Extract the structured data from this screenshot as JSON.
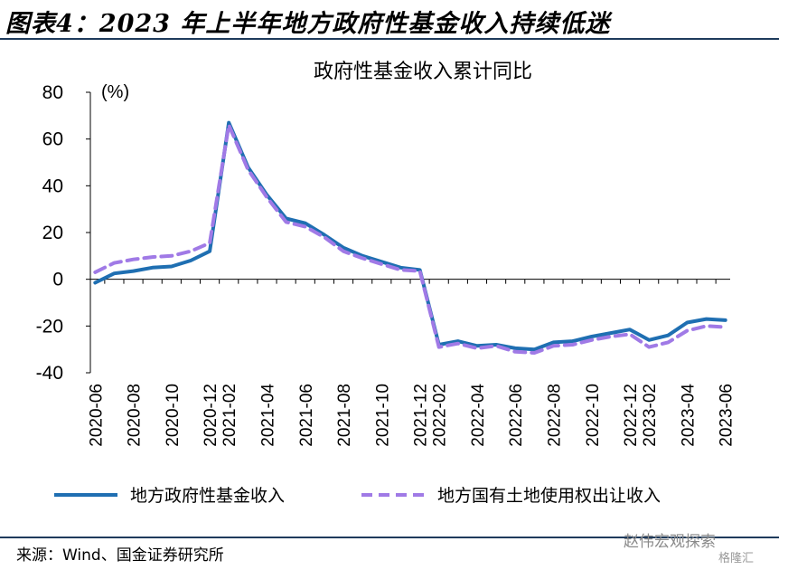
{
  "figure_title": "图表4：2023 年上半年地方政府性基金收入持续低迷",
  "source": "来源：Wind、国金证券研究所",
  "watermark": "赵伟宏观探索",
  "watermark_sub": "格隆汇",
  "colors": {
    "series1": "#1f6fb2",
    "series2": "#a07ae6",
    "rule": "#1f3b5c"
  },
  "chart_data": {
    "type": "line",
    "title": "政府性基金收入累计同比",
    "ylabel": "(%)",
    "ylim": [
      -40,
      80
    ],
    "yticks": [
      80,
      60,
      40,
      20,
      0,
      -20,
      -40
    ],
    "x": [
      "2020-06",
      "2020-07",
      "2020-08",
      "2020-09",
      "2020-10",
      "2020-11",
      "2020-12",
      "2021-02",
      "2021-03",
      "2021-04",
      "2021-05",
      "2021-06",
      "2021-07",
      "2021-08",
      "2021-09",
      "2021-10",
      "2021-11",
      "2021-12",
      "2022-02",
      "2022-03",
      "2022-04",
      "2022-05",
      "2022-06",
      "2022-07",
      "2022-08",
      "2022-09",
      "2022-10",
      "2022-11",
      "2022-12",
      "2023-02",
      "2023-03",
      "2023-04",
      "2023-05",
      "2023-06"
    ],
    "xtick_labels": [
      "2020-06",
      "2020-08",
      "2020-10",
      "2020-12",
      "2021-02",
      "2021-04",
      "2021-06",
      "2021-08",
      "2021-10",
      "2021-12",
      "2022-02",
      "2022-04",
      "2022-06",
      "2022-08",
      "2022-10",
      "2022-12",
      "2023-02",
      "2023-04",
      "2023-06"
    ],
    "grid": false,
    "legend_position": "bottom",
    "series": [
      {
        "name": "地方政府性基金收入",
        "style": "solid",
        "values": [
          -1.5,
          2.5,
          3.5,
          5.0,
          5.5,
          8.0,
          12.0,
          67.0,
          48.0,
          36.0,
          26.0,
          24.0,
          19.0,
          13.5,
          10.0,
          7.5,
          5.0,
          4.0,
          -28.0,
          -26.5,
          -28.5,
          -28.0,
          -29.5,
          -30.0,
          -27.0,
          -26.5,
          -24.5,
          -23.0,
          -21.5,
          -26.0,
          -24.0,
          -18.5,
          -17.0,
          -17.5
        ]
      },
      {
        "name": "地方国有土地使用权出让收入",
        "style": "dashed",
        "values": [
          3.0,
          7.0,
          8.5,
          9.5,
          10.0,
          12.0,
          15.5,
          66.0,
          47.0,
          35.0,
          24.5,
          22.5,
          18.0,
          12.0,
          9.0,
          6.5,
          4.0,
          3.5,
          -29.0,
          -27.5,
          -29.5,
          -28.5,
          -31.0,
          -31.5,
          -28.5,
          -28.0,
          -26.0,
          -24.5,
          -23.5,
          -29.0,
          -27.0,
          -22.0,
          -20.0,
          -20.5
        ]
      }
    ]
  }
}
